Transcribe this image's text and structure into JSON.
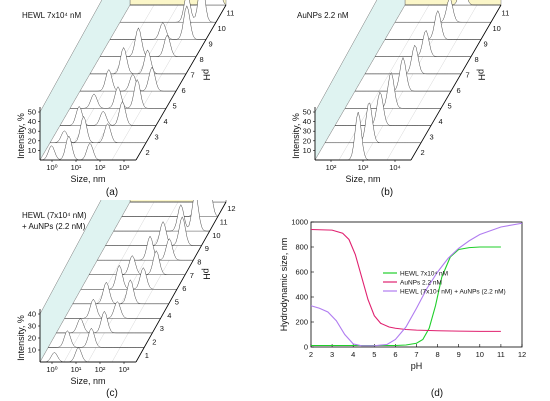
{
  "colors": {
    "back_wall": "#fbf6c8",
    "side_wall": "#dff3f1",
    "floor_line": "#9a9a9a",
    "green": "#1fcf2a",
    "magenta": "#e0206f",
    "violet": "#b07cf0"
  },
  "panels_3d": [
    {
      "id": "a",
      "caption": "(a)",
      "title": "HEWL 7x10⁴ nM",
      "title_lines": [
        "HEWL 7x10⁴ nM"
      ],
      "ylabel": "Intensity, %",
      "xlabel": "Size, nm",
      "zlabel": "pH",
      "yticks": [
        "10",
        "20",
        "30",
        "40",
        "50"
      ],
      "xticks": [
        "10⁰",
        "10¹",
        "10²",
        "10³"
      ],
      "ph_ticks": [
        "2",
        "3",
        "4",
        "5",
        "6",
        "7",
        "8",
        "9",
        "10",
        "11"
      ]
    },
    {
      "id": "b",
      "caption": "(b)",
      "title": "AuNPs 2.2 nM",
      "title_lines": [
        "AuNPs 2.2 nM"
      ],
      "ylabel": "Intensity, %",
      "xlabel": "Size, nm",
      "zlabel": "pH",
      "yticks": [
        "10",
        "20",
        "30",
        "40",
        "50"
      ],
      "xticks": [
        "10²",
        "10³",
        "10⁴"
      ],
      "ph_ticks": [
        "2",
        "3",
        "4",
        "5",
        "6",
        "7",
        "8",
        "9",
        "10",
        "11"
      ]
    },
    {
      "id": "c",
      "caption": "(c)",
      "title": "HEWL (7x10⁴ nM) + AuNPs (2.2 nM)",
      "title_lines": [
        "HEWL (7x10⁴ nM)",
        "+ AuNPs (2.2 nM)"
      ],
      "ylabel": "Intensity, %",
      "xlabel": "Size, nm",
      "zlabel": "pH",
      "yticks": [
        "10",
        "20",
        "30",
        "40"
      ],
      "xticks": [
        "10⁰",
        "10¹",
        "10²",
        "10³"
      ],
      "ph_ticks": [
        "1",
        "2",
        "3",
        "4",
        "5",
        "6",
        "7",
        "8",
        "9",
        "10",
        "11",
        "12"
      ]
    }
  ],
  "chart_data": {
    "type": "line",
    "caption": "(d)",
    "xlabel": "pH",
    "ylabel": "Hydrodynamic size, nm",
    "xlim": [
      2,
      12
    ],
    "ylim": [
      0,
      1000
    ],
    "xticks": [
      2,
      3,
      4,
      5,
      6,
      7,
      8,
      9,
      10,
      11,
      12
    ],
    "yticks": [
      0,
      200,
      400,
      600,
      800,
      1000
    ],
    "legend_position": "right",
    "series": [
      {
        "name": "HEWL 7x10⁴ nM",
        "color": "#1fcf2a",
        "x": [
          2,
          3,
          4,
          5,
          6,
          6.5,
          7,
          7.3,
          7.6,
          7.9,
          8.2,
          8.6,
          9,
          9.5,
          10,
          10.5,
          11
        ],
        "y": [
          12,
          12,
          12,
          12,
          12,
          16,
          30,
          60,
          150,
          330,
          560,
          720,
          780,
          795,
          800,
          800,
          800
        ]
      },
      {
        "name": "AuNPs 2.2 nM",
        "color": "#e0206f",
        "x": [
          2,
          3,
          3.5,
          3.8,
          4.1,
          4.4,
          4.7,
          5,
          5.3,
          5.7,
          6,
          6.5,
          7,
          8,
          9,
          10,
          11
        ],
        "y": [
          940,
          935,
          910,
          860,
          740,
          560,
          380,
          250,
          190,
          160,
          150,
          140,
          135,
          130,
          127,
          125,
          125
        ]
      },
      {
        "name": "HEWL (7x10⁴ nM) + AuNPs (2.2 nM)",
        "color": "#b07cf0",
        "x": [
          2,
          2.4,
          2.8,
          3.2,
          3.6,
          4,
          4.4,
          5,
          5.6,
          6,
          6.5,
          7,
          7.5,
          8,
          8.5,
          9,
          9.5,
          10,
          11,
          12
        ],
        "y": [
          330,
          310,
          280,
          210,
          100,
          25,
          10,
          10,
          20,
          60,
          160,
          310,
          470,
          600,
          710,
          790,
          850,
          900,
          960,
          990
        ]
      }
    ]
  }
}
